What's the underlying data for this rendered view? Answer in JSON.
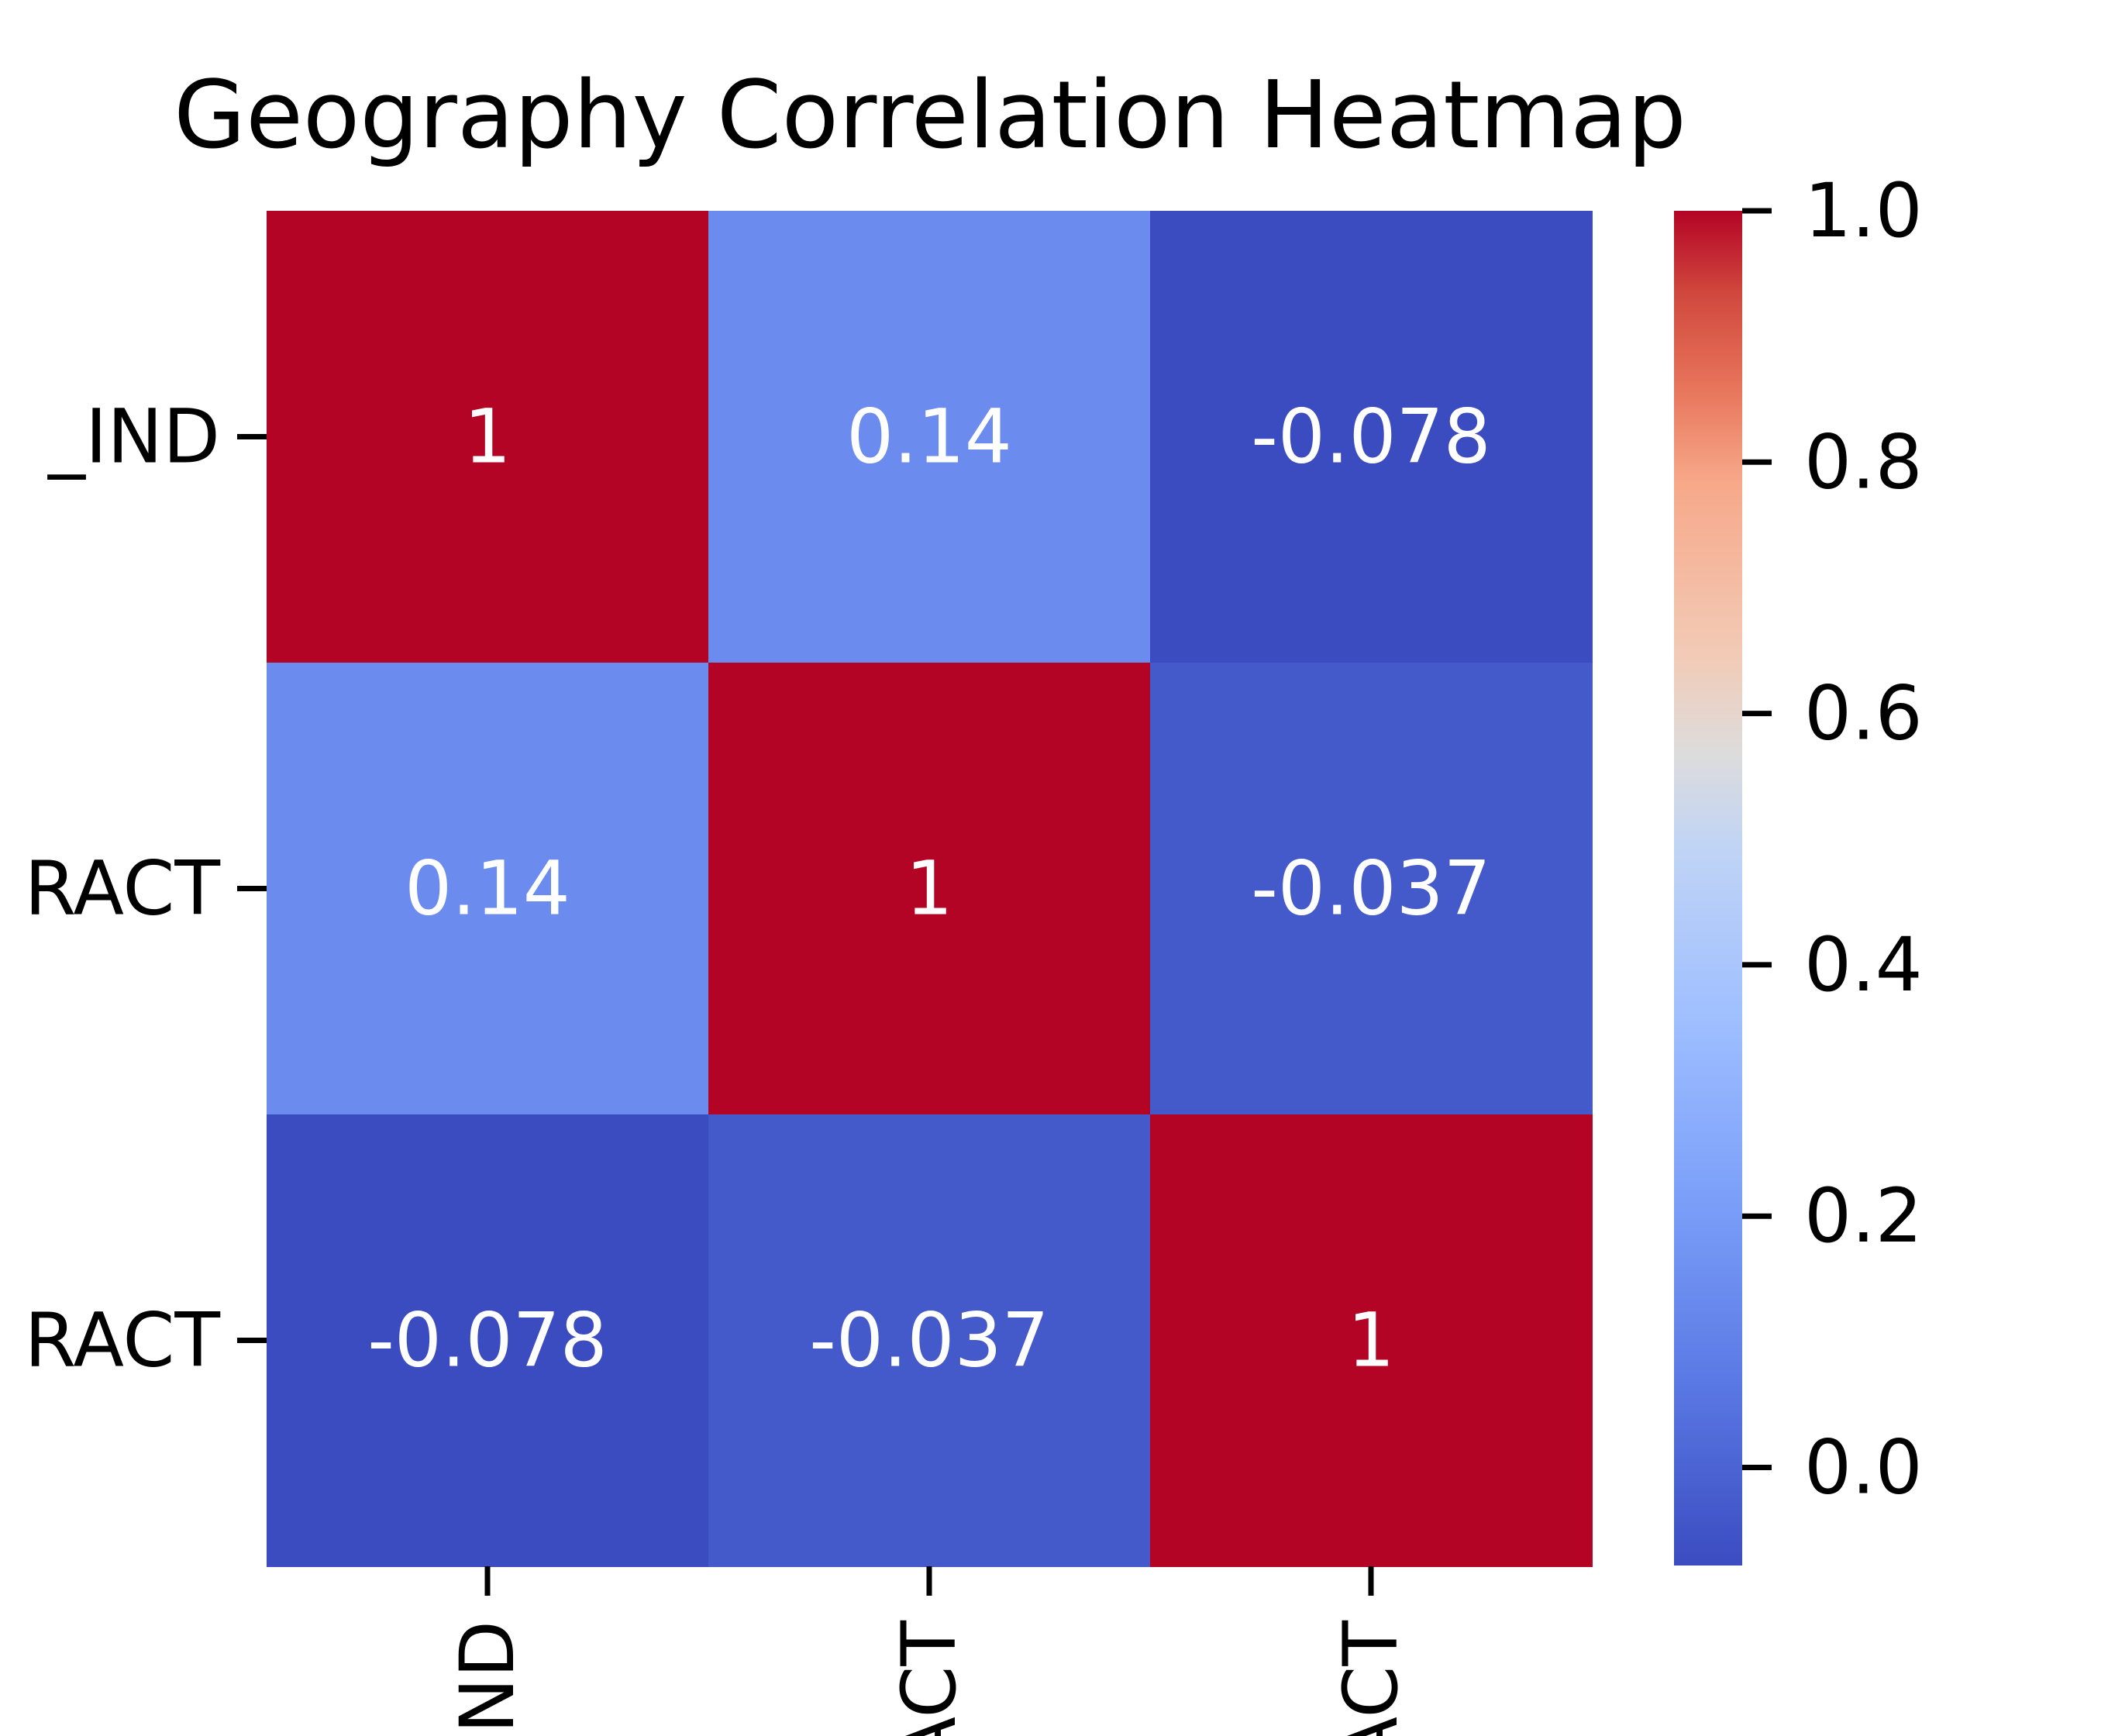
{
  "chart_data": {
    "type": "heatmap",
    "title": "Geography Correlation Heatmap",
    "row_labels": [
      "_IND",
      "RACT",
      "RACT"
    ],
    "col_labels": [
      "ND",
      "ACT",
      "ACT"
    ],
    "values": [
      [
        1,
        0.14,
        -0.078
      ],
      [
        0.14,
        1,
        -0.037
      ],
      [
        -0.078,
        -0.037,
        1
      ]
    ],
    "cell_text": [
      [
        "1",
        "0.14",
        "-0.078"
      ],
      [
        "0.14",
        "1",
        "-0.037"
      ],
      [
        "-0.078",
        "-0.037",
        "1"
      ]
    ],
    "colorscale": "coolwarm",
    "colorbar": {
      "range": [
        -0.078,
        1
      ],
      "ticks": [
        0.0,
        0.2,
        0.4,
        0.6,
        0.8,
        1.0
      ],
      "tick_labels": [
        "0.0",
        "0.2",
        "0.4",
        "0.6",
        "0.8",
        "1.0"
      ]
    },
    "colors": {
      "cell_high": "#b40426",
      "cell_mid_low": "#7b9ff9",
      "cell_low": "#3b4cc0",
      "cell_low2": "#465ecf"
    }
  }
}
